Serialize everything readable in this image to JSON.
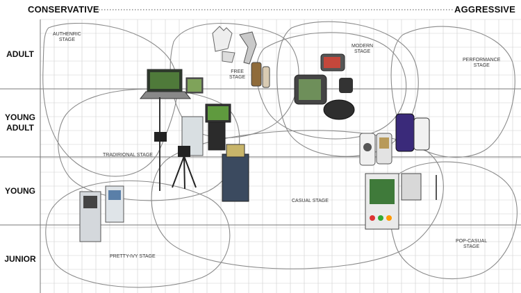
{
  "header": {
    "left": "CONSERVATIVE",
    "right": "AGGRESSIVE"
  },
  "rows": [
    {
      "label": "ADULT"
    },
    {
      "label": "YOUNG\nADULT"
    },
    {
      "label": "YOUNG"
    },
    {
      "label": "JUNIOR"
    }
  ],
  "stages": {
    "authentic": "AUTHENRIC\nSTAGE",
    "free": "FREE\nSTAGE",
    "modern": "MODERN\nSTAGE",
    "performance": "PERFORMANCE\nSTAGE",
    "traditional": "TRADIRIONAL STAGE",
    "casual": "CASUAL STAGE",
    "pretty_ivy": "PRETTY-IVY STAGE",
    "pop_casual": "POP-CASUAL\nSTAGE"
  },
  "products": [
    {
      "icon": "golf-club-icon"
    },
    {
      "icon": "golf-glove-icon"
    },
    {
      "icon": "laptop-icon"
    },
    {
      "icon": "kiosk-icon"
    },
    {
      "icon": "tripod-icon"
    },
    {
      "icon": "gps-device-icon"
    },
    {
      "icon": "camcorder-icon"
    },
    {
      "icon": "mobile-phone-icon"
    },
    {
      "icon": "arcade-cabinet-icon"
    },
    {
      "icon": "monitor-icon"
    }
  ],
  "colors": {
    "grid": "#cfcfcf",
    "divider": "#777777",
    "stage_line": "#8a8a8a",
    "text": "#111111"
  }
}
